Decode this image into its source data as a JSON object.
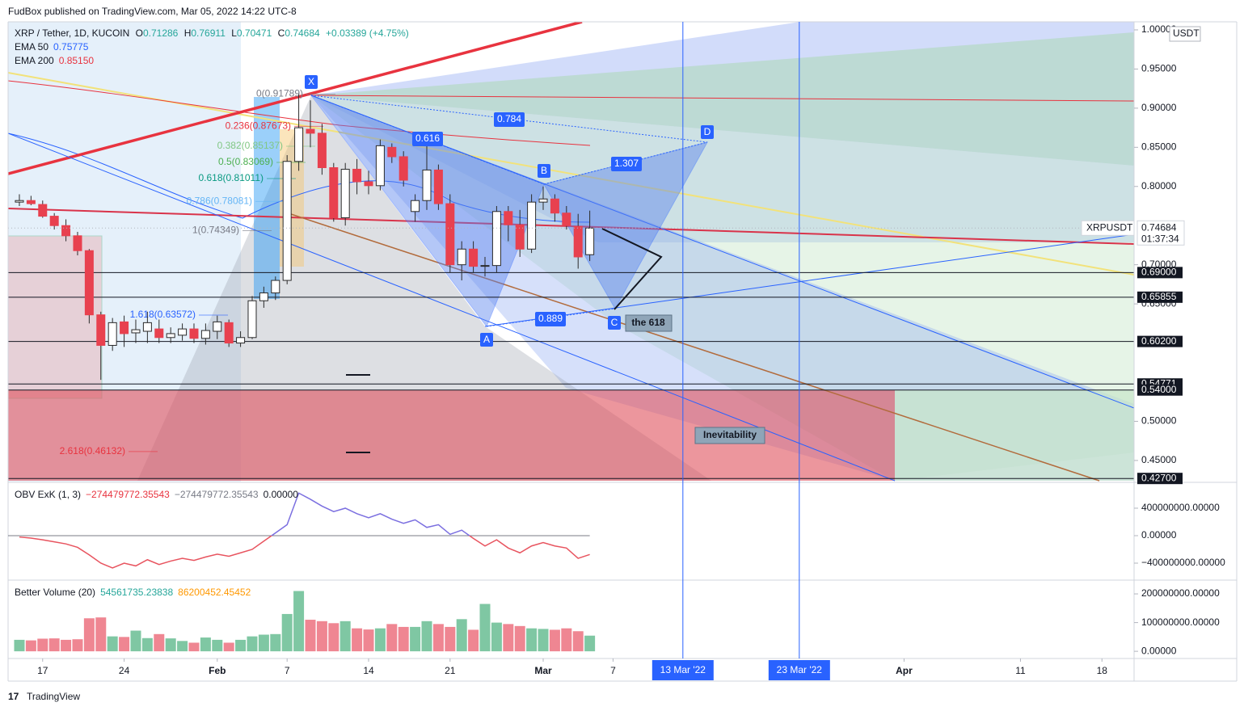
{
  "header": {
    "publisher": "FudBox published on TradingView.com, Mar 05, 2022 14:22 UTC-8"
  },
  "footer": {
    "brand": "TradingView"
  },
  "chart_data": [
    {
      "type": "candlestick",
      "legend": {
        "symbol": "XRP / Tether, 1D, KUCOIN",
        "o": "O",
        "open": "0.71286",
        "h": "H",
        "high": "0.76911",
        "l": "L",
        "low": "0.70471",
        "c": "C",
        "close": "0.74684",
        "change": "+0.03389 (+4.75%)"
      },
      "indicators": [
        {
          "name": "EMA 50",
          "value": "0.75775",
          "color": "#2962ff"
        },
        {
          "name": "EMA 200",
          "value": "0.85150",
          "color": "#e8333f"
        }
      ],
      "currency": "USDT",
      "up_color": "#ffffff",
      "down_color": "#e8414f",
      "wick_color": "#2b2b2b",
      "open": [
        0.78,
        0.782,
        0.777,
        0.762,
        0.75,
        0.737,
        0.718,
        0.636,
        0.597,
        0.627,
        0.613,
        0.615,
        0.618,
        0.607,
        0.61,
        0.618,
        0.606,
        0.615,
        0.626,
        0.6,
        0.607,
        0.654,
        0.664,
        0.68,
        0.832,
        0.873,
        0.868,
        0.824,
        0.76,
        0.822,
        0.806,
        0.801,
        0.85,
        0.838,
        0.768,
        0.782,
        0.821,
        0.778,
        0.7,
        0.72,
        0.698,
        0.699,
        0.768,
        0.751,
        0.72,
        0.78,
        0.784,
        0.766,
        0.749,
        0.71286
      ],
      "high": [
        0.79,
        0.788,
        0.782,
        0.766,
        0.758,
        0.742,
        0.72,
        0.64,
        0.632,
        0.635,
        0.63,
        0.64,
        0.63,
        0.62,
        0.625,
        0.625,
        0.625,
        0.635,
        0.63,
        0.615,
        0.66,
        0.672,
        0.685,
        0.84,
        0.918,
        0.91,
        0.88,
        0.83,
        0.83,
        0.835,
        0.82,
        0.86,
        0.855,
        0.845,
        0.79,
        0.86,
        0.828,
        0.79,
        0.73,
        0.73,
        0.71,
        0.775,
        0.775,
        0.77,
        0.79,
        0.8,
        0.79,
        0.775,
        0.765,
        0.76911
      ],
      "low": [
        0.775,
        0.776,
        0.76,
        0.745,
        0.73,
        0.712,
        0.625,
        0.553,
        0.59,
        0.595,
        0.6,
        0.6,
        0.6,
        0.6,
        0.603,
        0.6,
        0.598,
        0.605,
        0.595,
        0.595,
        0.605,
        0.645,
        0.655,
        0.675,
        0.82,
        0.85,
        0.815,
        0.755,
        0.75,
        0.79,
        0.79,
        0.795,
        0.83,
        0.8,
        0.755,
        0.77,
        0.77,
        0.69,
        0.68,
        0.69,
        0.685,
        0.69,
        0.73,
        0.71,
        0.715,
        0.77,
        0.755,
        0.745,
        0.695,
        0.70471
      ],
      "close": [
        0.782,
        0.778,
        0.762,
        0.75,
        0.737,
        0.718,
        0.636,
        0.597,
        0.626,
        0.612,
        0.617,
        0.626,
        0.607,
        0.612,
        0.618,
        0.606,
        0.616,
        0.627,
        0.6,
        0.607,
        0.654,
        0.664,
        0.68,
        0.832,
        0.875,
        0.868,
        0.824,
        0.76,
        0.822,
        0.806,
        0.801,
        0.852,
        0.838,
        0.808,
        0.782,
        0.821,
        0.778,
        0.7,
        0.72,
        0.698,
        0.699,
        0.768,
        0.751,
        0.72,
        0.78,
        0.784,
        0.766,
        0.75,
        0.71,
        0.74684
      ],
      "xlim": [
        -0.97,
        95.76
      ],
      "xticks": [
        {
          "value": 2,
          "label": "17"
        },
        {
          "value": 9,
          "label": "24"
        },
        {
          "value": 17,
          "label": "Feb"
        },
        {
          "value": 23,
          "label": "7"
        },
        {
          "value": 30,
          "label": "14"
        },
        {
          "value": 37,
          "label": "21"
        },
        {
          "value": 45,
          "label": "Mar"
        },
        {
          "value": 51,
          "label": "7"
        },
        {
          "value": 76,
          "label": "Apr"
        },
        {
          "value": 86,
          "label": "11"
        },
        {
          "value": 93,
          "label": "18"
        }
      ],
      "vertical_lines": [
        {
          "value": 57,
          "label": "13 Mar '22"
        },
        {
          "value": 67,
          "label": "23 Mar '22"
        }
      ],
      "vline_color": "#2962ff",
      "ylim": [
        0.4241,
        1.0103
      ],
      "yticks": [
        {
          "value": 1,
          "label": "1.00000"
        },
        {
          "value": 0.95,
          "label": "0.95000"
        },
        {
          "value": 0.9,
          "label": "0.90000"
        },
        {
          "value": 0.85,
          "label": "0.85000"
        },
        {
          "value": 0.8,
          "label": "0.80000"
        },
        {
          "value": 0.7,
          "label": "0.70000"
        },
        {
          "value": 0.65,
          "label": "0.65000"
        },
        {
          "value": 0.5,
          "label": "0.50000"
        },
        {
          "value": 0.45,
          "label": "0.45000"
        }
      ],
      "price_lines": [
        {
          "value": 0.69,
          "label": "0.69000"
        },
        {
          "value": 0.65855,
          "label": "0.65855"
        },
        {
          "value": 0.602,
          "label": "0.60200"
        },
        {
          "value": 0.54771,
          "label": "0.54771"
        },
        {
          "value": 0.54,
          "label": "0.54000"
        },
        {
          "value": 0.427,
          "label": "0.42700"
        }
      ],
      "last_price": {
        "value": 0.74684,
        "label": "0.74684",
        "symbol": "XRPUSDT",
        "countdown": "01:37:34"
      },
      "fib_levels": [
        {
          "value": 0.91789,
          "label": "0(0.91789)",
          "color": "#787b86"
        },
        {
          "value": 0.87673,
          "label": "0.236(0.87673)",
          "color": "#e8333f"
        },
        {
          "value": 0.85137,
          "label": "0.382(0.85137)",
          "color": "#81c784"
        },
        {
          "value": 0.83069,
          "label": "0.5(0.83069)",
          "color": "#4caf50"
        },
        {
          "value": 0.81011,
          "label": "0.618(0.81011)",
          "color": "#089981"
        },
        {
          "value": 0.78081,
          "label": "0.786(0.78081)",
          "color": "#64b5f6"
        },
        {
          "value": 0.74349,
          "label": "1(0.74349)",
          "color": "#787b86"
        },
        {
          "value": 0.63572,
          "label": "1.618(0.63572)",
          "color": "#2962ff"
        },
        {
          "value": 0.46132,
          "label": "2.618(0.46132)",
          "color": "#e8333f"
        }
      ],
      "pattern_points": [
        "X",
        "A",
        "B",
        "C",
        "D"
      ],
      "pattern_ratios": [
        "0.784",
        "0.616",
        "1.307",
        "0.889"
      ],
      "annotations": [
        "the 618",
        "Inevitability"
      ]
    },
    {
      "type": "line",
      "title": "OBV ExK (1, 3)",
      "legend_values": [
        "−274479772.35543",
        "−274479772.35543",
        "0.00000"
      ],
      "legend_colors": [
        "#e8333f",
        "#787b86",
        "#131722"
      ],
      "color_above": "#7b6fe0",
      "color_below": "#e8545f",
      "values": [
        -20000000,
        -35000000,
        -60000000,
        -90000000,
        -120000000,
        -170000000,
        -280000000,
        -400000000,
        -470000000,
        -400000000,
        -440000000,
        -350000000,
        -420000000,
        -370000000,
        -330000000,
        -360000000,
        -310000000,
        -270000000,
        -300000000,
        -250000000,
        -200000000,
        -80000000,
        40000000,
        160000000,
        620000000,
        530000000,
        430000000,
        350000000,
        400000000,
        320000000,
        260000000,
        320000000,
        240000000,
        180000000,
        230000000,
        120000000,
        160000000,
        20000000,
        80000000,
        -40000000,
        -150000000,
        -60000000,
        -180000000,
        -250000000,
        -150000000,
        -100000000,
        -150000000,
        -180000000,
        -330000000,
        -274479772.35543
      ],
      "ylim": [
        -647000000,
        776000000
      ],
      "yticks": [
        {
          "value": 400000000,
          "label": "400000000.00000"
        },
        {
          "value": 0,
          "label": "0.00000"
        },
        {
          "value": -400000000,
          "label": "−400000000.00000"
        }
      ]
    },
    {
      "type": "bar",
      "title": "Better Volume (20)",
      "legend_values": [
        "54561735.23838",
        "86200452.45452"
      ],
      "legend_colors": [
        "#26a69a",
        "#ff9800"
      ],
      "up_color": "#7fc7a3",
      "down_color": "#ef8692",
      "values": [
        40000000,
        38000000,
        44000000,
        45000000,
        40000000,
        42000000,
        115000000,
        118000000,
        52000000,
        50000000,
        72000000,
        46000000,
        60000000,
        45000000,
        36000000,
        30000000,
        48000000,
        40000000,
        30000000,
        40000000,
        52000000,
        58000000,
        60000000,
        130000000,
        210000000,
        110000000,
        105000000,
        98000000,
        105000000,
        80000000,
        76000000,
        80000000,
        95000000,
        85000000,
        85000000,
        105000000,
        95000000,
        85000000,
        112000000,
        75000000,
        165000000,
        100000000,
        95000000,
        88000000,
        80000000,
        78000000,
        75000000,
        80000000,
        70000000,
        54561735.23838
      ],
      "ylim": [
        -25000000,
        248000000
      ],
      "yticks": [
        {
          "value": 200000000,
          "label": "200000000.00000"
        },
        {
          "value": 100000000,
          "label": "100000000.00000"
        },
        {
          "value": 0,
          "label": "0.00000"
        }
      ]
    }
  ]
}
